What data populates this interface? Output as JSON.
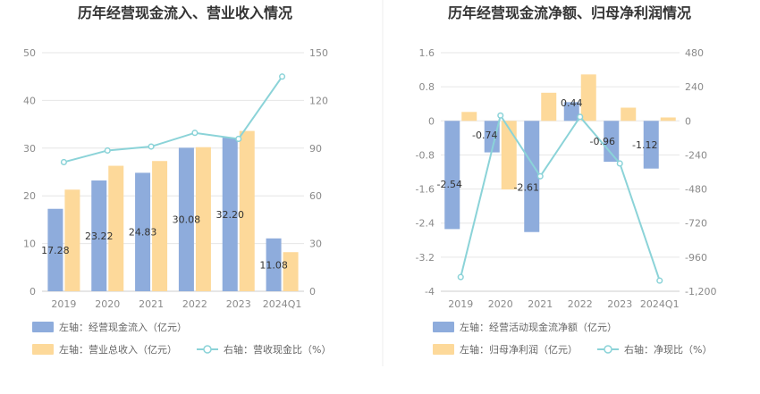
{
  "chart_data": [
    {
      "type": "bar+line",
      "title": "历年经营现金流入、营业收入情况",
      "categories": [
        "2019",
        "2020",
        "2021",
        "2022",
        "2023",
        "2024Q1"
      ],
      "left_axis": {
        "ticks": [
          "0",
          "10",
          "20",
          "30",
          "40",
          "50"
        ],
        "ylim": [
          0,
          50
        ]
      },
      "right_axis": {
        "ticks": [
          "0",
          "30",
          "60",
          "90",
          "120",
          "150"
        ],
        "ylim": [
          0,
          150
        ]
      },
      "series": [
        {
          "name": "左轴：经营现金流入（亿元）",
          "type": "bar",
          "axis": "left",
          "color": "#8EACDC",
          "values": [
            17.28,
            23.22,
            24.83,
            30.08,
            32.2,
            11.08
          ],
          "labels": [
            "17.28",
            "23.22",
            "24.83",
            "30.08",
            "32.20",
            "11.08"
          ]
        },
        {
          "name": "左轴：营业总收入（亿元）",
          "type": "bar",
          "axis": "left",
          "color": "#FDD99A",
          "values": [
            21.3,
            26.3,
            27.3,
            30.2,
            33.6,
            8.2
          ]
        },
        {
          "name": "右轴：营收现金比（%）",
          "type": "line",
          "axis": "right",
          "color": "#8BD3D8",
          "values": [
            81.2,
            88.5,
            91.0,
            99.6,
            95.8,
            135.0
          ]
        }
      ]
    },
    {
      "type": "bar+line",
      "title": "历年经营现金流净额、归母净利润情况",
      "categories": [
        "2019",
        "2020",
        "2021",
        "2022",
        "2023",
        "2024Q1"
      ],
      "left_axis": {
        "ticks": [
          "-4",
          "-3.2",
          "-2.4",
          "-1.6",
          "-0.8",
          "0",
          "0.8",
          "1.6"
        ],
        "ylim": [
          -4,
          1.6
        ]
      },
      "right_axis": {
        "ticks": [
          "-1,200",
          "-960",
          "-720",
          "-480",
          "-240",
          "0",
          "240",
          "480"
        ],
        "ylim": [
          -1200,
          480
        ]
      },
      "series": [
        {
          "name": "左轴：经营活动现金流净额（亿元）",
          "type": "bar",
          "axis": "left",
          "color": "#8EACDC",
          "values": [
            -2.54,
            -0.74,
            -2.61,
            0.44,
            -0.96,
            -1.12
          ],
          "labels": [
            "-2.54",
            "-0.74",
            "-2.61",
            "0.44",
            "-0.96",
            "-1.12"
          ]
        },
        {
          "name": "左轴：归母净利润（亿元）",
          "type": "bar",
          "axis": "left",
          "color": "#FDD99A",
          "values": [
            0.21,
            -1.61,
            0.66,
            1.09,
            0.31,
            0.08
          ]
        },
        {
          "name": "右轴：净现比（%）",
          "type": "line",
          "axis": "right",
          "color": "#8BD3D8",
          "values": [
            -1100,
            38,
            -390,
            28,
            -300,
            -1125
          ]
        }
      ]
    }
  ]
}
